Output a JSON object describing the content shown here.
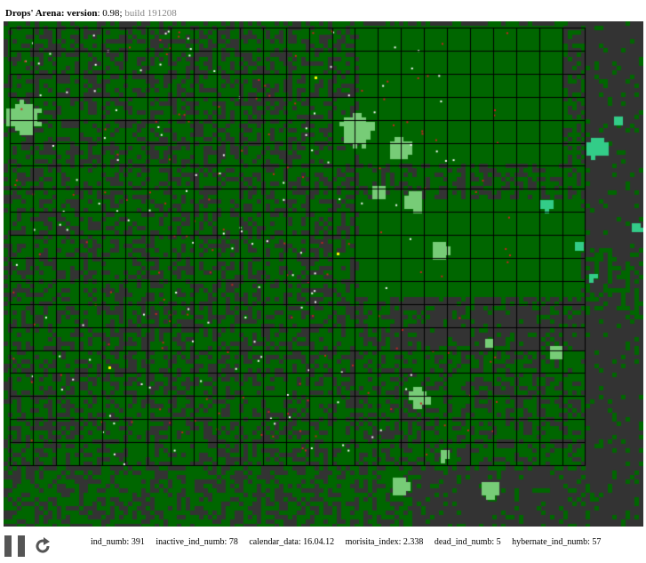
{
  "header": {
    "app_name": "Drops' Arena: version",
    "version_value": ": 0.98;",
    "build": "build 191208"
  },
  "controls": {
    "pause_icon": "pause-icon",
    "reload_icon": "reload-icon"
  },
  "stats": {
    "ind_numb": "ind_numb: 391",
    "inactive_ind_numb": "inactive_ind_numb: 78",
    "calendar_data": "calendar_data: 16.04.12",
    "morisita_index": "morisita_index: 2.338",
    "dead_ind_numb": "dead_ind_numb: 5",
    "hybernate_ind_numb": "hybernate_ind_numb: 57"
  },
  "colors": {
    "background": "#333333",
    "vegetation": "#006600",
    "light_patch": "#77cc77",
    "teal_patch": "#33cc88",
    "individual_active": "#ffffff",
    "individual_red": "#cc2222",
    "individual_yellow": "#ffff00",
    "grid_line": "#000000"
  }
}
